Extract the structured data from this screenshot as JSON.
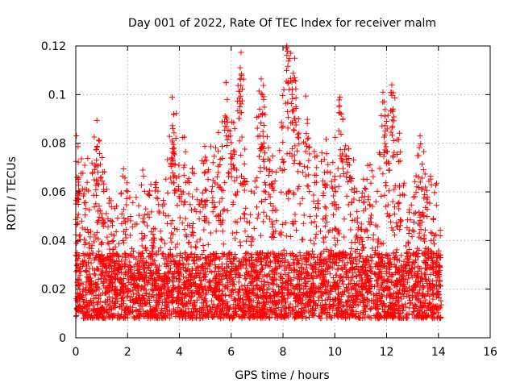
{
  "chart_data": {
    "type": "scatter",
    "title": "Day 001 of 2022, Rate Of TEC Index for receiver malm",
    "xlabel": "GPS time / hours",
    "ylabel": "ROTI / TECUs",
    "xlim": [
      0,
      16
    ],
    "ylim": [
      0,
      0.12
    ],
    "x_ticks": [
      0,
      2,
      4,
      6,
      8,
      10,
      12,
      14,
      16
    ],
    "x_tick_labels": [
      "0",
      "2",
      "4",
      "6",
      "8",
      "10",
      "12",
      "14",
      "16"
    ],
    "y_ticks": [
      0,
      0.02,
      0.04,
      0.06,
      0.08,
      0.1,
      0.12
    ],
    "y_tick_labels": [
      "0",
      "0.02",
      "0.04",
      "0.06",
      "0.08",
      "0.1",
      "0.12"
    ],
    "grid": true,
    "marker": "+",
    "color": "#ff0000",
    "series": [
      {
        "name": "ROTI",
        "x_range": [
          0,
          14.1
        ],
        "typical_band": [
          0.008,
          0.035
        ],
        "peaks": [
          {
            "x": 0.05,
            "y": 0.066
          },
          {
            "x": 0.1,
            "y": 0.064
          },
          {
            "x": 0.35,
            "y": 0.061
          },
          {
            "x": 0.8,
            "y": 0.073
          },
          {
            "x": 0.85,
            "y": 0.068
          },
          {
            "x": 1.0,
            "y": 0.051
          },
          {
            "x": 1.9,
            "y": 0.048
          },
          {
            "x": 2.6,
            "y": 0.049
          },
          {
            "x": 2.7,
            "y": 0.053
          },
          {
            "x": 3.0,
            "y": 0.045
          },
          {
            "x": 3.7,
            "y": 0.074
          },
          {
            "x": 3.75,
            "y": 0.086
          },
          {
            "x": 3.78,
            "y": 0.092
          },
          {
            "x": 3.8,
            "y": 0.078
          },
          {
            "x": 4.2,
            "y": 0.071
          },
          {
            "x": 4.5,
            "y": 0.058
          },
          {
            "x": 5.0,
            "y": 0.061
          },
          {
            "x": 5.3,
            "y": 0.072
          },
          {
            "x": 5.5,
            "y": 0.068
          },
          {
            "x": 5.8,
            "y": 0.105
          },
          {
            "x": 5.85,
            "y": 0.098
          },
          {
            "x": 5.95,
            "y": 0.085
          },
          {
            "x": 6.1,
            "y": 0.077
          },
          {
            "x": 6.35,
            "y": 0.111
          },
          {
            "x": 6.4,
            "y": 0.108
          },
          {
            "x": 6.5,
            "y": 0.064
          },
          {
            "x": 7.1,
            "y": 0.094
          },
          {
            "x": 7.2,
            "y": 0.1
          },
          {
            "x": 7.25,
            "y": 0.098
          },
          {
            "x": 7.3,
            "y": 0.076
          },
          {
            "x": 7.6,
            "y": 0.062
          },
          {
            "x": 8.0,
            "y": 0.087
          },
          {
            "x": 8.15,
            "y": 0.12
          },
          {
            "x": 8.2,
            "y": 0.105
          },
          {
            "x": 8.3,
            "y": 0.117
          },
          {
            "x": 8.35,
            "y": 0.1
          },
          {
            "x": 8.45,
            "y": 0.107
          },
          {
            "x": 8.5,
            "y": 0.095
          },
          {
            "x": 8.6,
            "y": 0.09
          },
          {
            "x": 8.9,
            "y": 0.084
          },
          {
            "x": 9.3,
            "y": 0.07
          },
          {
            "x": 9.6,
            "y": 0.068
          },
          {
            "x": 10.0,
            "y": 0.065
          },
          {
            "x": 10.2,
            "y": 0.099
          },
          {
            "x": 10.25,
            "y": 0.092
          },
          {
            "x": 10.6,
            "y": 0.066
          },
          {
            "x": 11.3,
            "y": 0.058
          },
          {
            "x": 11.9,
            "y": 0.097
          },
          {
            "x": 11.95,
            "y": 0.085
          },
          {
            "x": 12.0,
            "y": 0.089
          },
          {
            "x": 12.2,
            "y": 0.104
          },
          {
            "x": 12.25,
            "y": 0.094
          },
          {
            "x": 12.5,
            "y": 0.062
          },
          {
            "x": 13.3,
            "y": 0.064
          },
          {
            "x": 13.5,
            "y": 0.062
          },
          {
            "x": 13.8,
            "y": 0.049
          },
          {
            "x": 14.05,
            "y": 0.033
          }
        ]
      }
    ]
  }
}
